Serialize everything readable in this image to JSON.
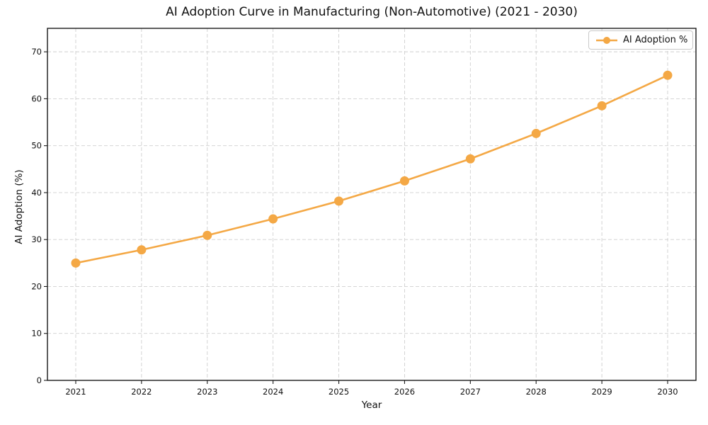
{
  "chart_data": {
    "type": "line",
    "title": "AI Adoption Curve in Manufacturing (Non-Automotive) (2021 - 2030)",
    "xlabel": "Year",
    "ylabel": "AI Adoption (%)",
    "categories": [
      "2021",
      "2022",
      "2023",
      "2024",
      "2025",
      "2026",
      "2027",
      "2028",
      "2029",
      "2030"
    ],
    "series": [
      {
        "name": "AI Adoption %",
        "values": [
          25.0,
          27.8,
          30.9,
          34.4,
          38.2,
          42.5,
          47.2,
          52.6,
          58.5,
          65.0
        ],
        "color": "#F4A845",
        "marker": "circle"
      }
    ],
    "ylim": [
      0,
      75
    ],
    "yticks": [
      0,
      10,
      20,
      30,
      40,
      50,
      60,
      70
    ],
    "grid": true,
    "grid_style": "dashed",
    "legend_position": "upper right"
  },
  "colors": {
    "line": "#F4A845",
    "grid": "#cfcfcf",
    "axis": "#1a1a1a",
    "text": "#111111",
    "legend_border": "#c9c9c9",
    "background": "#ffffff"
  }
}
